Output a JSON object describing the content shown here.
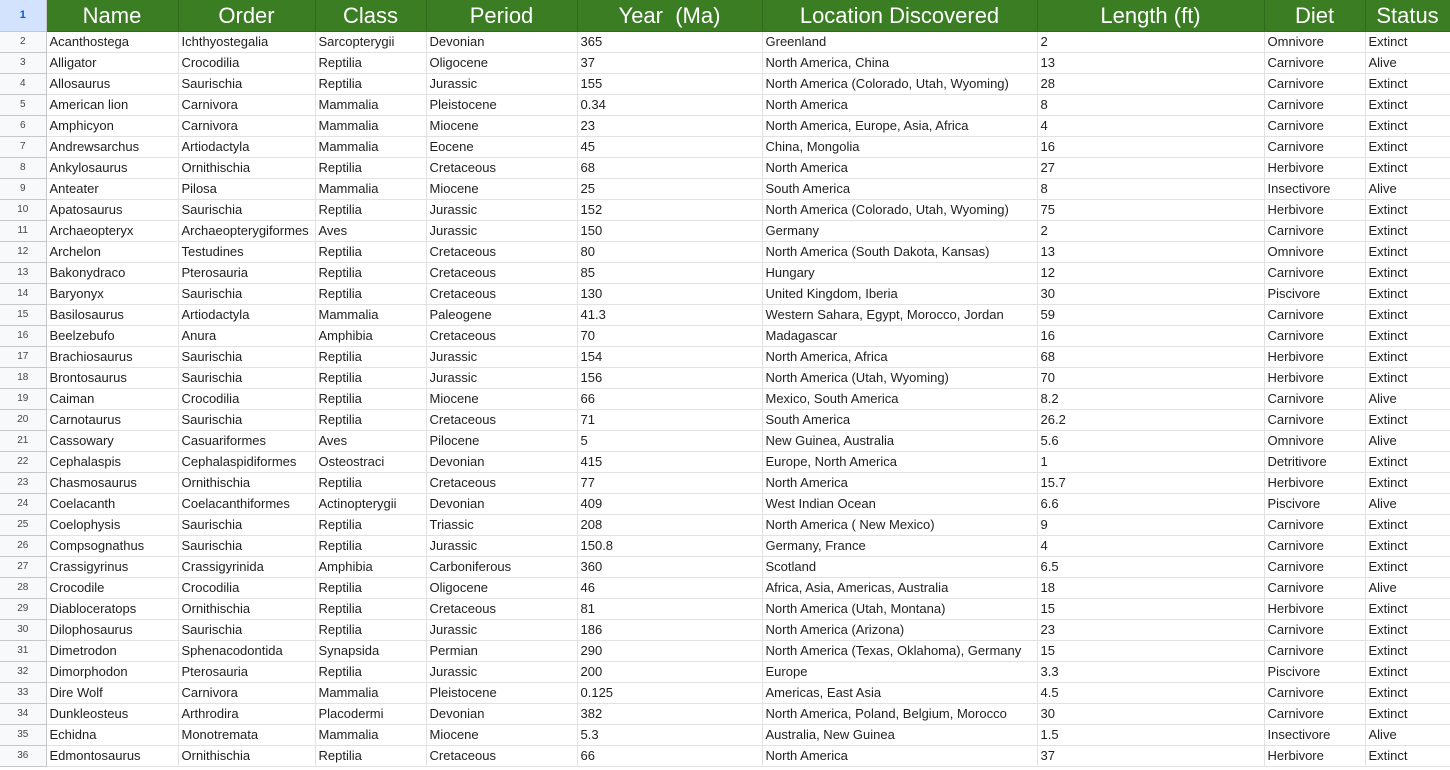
{
  "header_row_number": "1",
  "columns": [
    "Name",
    "Order",
    "Class",
    "Period",
    "Year  (Ma)",
    "Location Discovered",
    "Length (ft)",
    "Diet",
    "Status"
  ],
  "rows": [
    {
      "n": "2",
      "cells": [
        "Acanthostega",
        "Ichthyostegalia",
        "Sarcopterygii",
        "Devonian",
        "365",
        "Greenland",
        "2",
        "Omnivore",
        "Extinct"
      ]
    },
    {
      "n": "3",
      "cells": [
        "Alligator",
        "Crocodilia",
        "Reptilia",
        "Oligocene",
        "37",
        "North America, China",
        "13",
        "Carnivore",
        "Alive"
      ]
    },
    {
      "n": "4",
      "cells": [
        "Allosaurus",
        "Saurischia",
        "Reptilia",
        "Jurassic",
        "155",
        "North America (Colorado, Utah, Wyoming)",
        "28",
        "Carnivore",
        "Extinct"
      ]
    },
    {
      "n": "5",
      "cells": [
        "American lion",
        "Carnivora",
        "Mammalia",
        "Pleistocene",
        "0.34",
        "North America",
        "8",
        "Carnivore",
        "Extinct"
      ]
    },
    {
      "n": "6",
      "cells": [
        "Amphicyon",
        "Carnivora",
        "Mammalia",
        "Miocene",
        "23",
        "North America, Europe, Asia, Africa",
        "4",
        "Carnivore",
        "Extinct"
      ]
    },
    {
      "n": "7",
      "cells": [
        "Andrewsarchus",
        "Artiodactyla",
        "Mammalia",
        "Eocene",
        "45",
        "China, Mongolia",
        "16",
        "Carnivore",
        "Extinct"
      ]
    },
    {
      "n": "8",
      "cells": [
        "Ankylosaurus",
        "Ornithischia",
        "Reptilia",
        "Cretaceous",
        "68",
        "North America",
        "27",
        "Herbivore",
        "Extinct"
      ]
    },
    {
      "n": "9",
      "cells": [
        "Anteater",
        "Pilosa",
        "Mammalia",
        "Miocene",
        "25",
        "South America",
        "8",
        "Insectivore",
        "Alive"
      ]
    },
    {
      "n": "10",
      "cells": [
        "Apatosaurus",
        "Saurischia",
        "Reptilia",
        "Jurassic",
        "152",
        "North America (Colorado, Utah, Wyoming)",
        "75",
        "Herbivore",
        "Extinct"
      ]
    },
    {
      "n": "11",
      "cells": [
        "Archaeopteryx",
        "Archaeopterygiformes",
        "Aves",
        "Jurassic",
        "150",
        "Germany",
        "2",
        "Carnivore",
        "Extinct"
      ]
    },
    {
      "n": "12",
      "cells": [
        "Archelon",
        "Testudines",
        "Reptilia",
        "Cretaceous",
        "80",
        "North America (South Dakota, Kansas)",
        "13",
        "Omnivore",
        "Extinct"
      ]
    },
    {
      "n": "13",
      "cells": [
        "Bakonydraco",
        "Pterosauria",
        "Reptilia",
        "Cretaceous",
        "85",
        "Hungary",
        "12",
        "Carnivore",
        "Extinct"
      ]
    },
    {
      "n": "14",
      "cells": [
        "Baryonyx",
        "Saurischia",
        "Reptilia",
        "Cretaceous",
        "130",
        "United Kingdom, Iberia",
        "30",
        "Piscivore",
        "Extinct"
      ]
    },
    {
      "n": "15",
      "cells": [
        "Basilosaurus",
        "Artiodactyla",
        "Mammalia",
        "Paleogene",
        "41.3",
        "Western Sahara, Egypt, Morocco, Jordan",
        "59",
        "Carnivore",
        "Extinct"
      ]
    },
    {
      "n": "16",
      "cells": [
        "Beelzebufo",
        "Anura",
        "Amphibia",
        "Cretaceous",
        "70",
        "Madagascar",
        "16",
        "Carnivore",
        "Extinct"
      ]
    },
    {
      "n": "17",
      "cells": [
        "Brachiosaurus",
        "Saurischia",
        "Reptilia",
        "Jurassic",
        "154",
        "North America, Africa",
        "68",
        "Herbivore",
        "Extinct"
      ]
    },
    {
      "n": "18",
      "cells": [
        "Brontosaurus",
        "Saurischia",
        "Reptilia",
        "Jurassic",
        "156",
        "North America (Utah, Wyoming)",
        "70",
        "Herbivore",
        "Extinct"
      ]
    },
    {
      "n": "19",
      "cells": [
        "Caiman",
        "Crocodilia",
        "Reptilia",
        "Miocene",
        "66",
        "Mexico, South America",
        "8.2",
        "Carnivore",
        "Alive"
      ]
    },
    {
      "n": "20",
      "cells": [
        "Carnotaurus",
        "Saurischia",
        "Reptilia",
        "Cretaceous",
        "71",
        "South America",
        "26.2",
        "Carnivore",
        "Extinct"
      ]
    },
    {
      "n": "21",
      "cells": [
        "Cassowary",
        "Casuariformes",
        "Aves",
        "Pilocene",
        "5",
        "New Guinea, Australia",
        "5.6",
        "Omnivore",
        "Alive"
      ]
    },
    {
      "n": "22",
      "cells": [
        "Cephalaspis",
        "Cephalaspidiformes",
        "Osteostraci",
        "Devonian",
        "415",
        "Europe, North America",
        "1",
        "Detritivore",
        "Extinct"
      ]
    },
    {
      "n": "23",
      "cells": [
        "Chasmosaurus",
        "Ornithischia",
        "Reptilia",
        "Cretaceous",
        "77",
        "North America",
        "15.7",
        "Herbivore",
        "Extinct"
      ]
    },
    {
      "n": "24",
      "cells": [
        "Coelacanth",
        "Coelacanthiformes",
        "Actinopterygii",
        "Devonian",
        "409",
        "West Indian Ocean",
        "6.6",
        "Piscivore",
        "Alive"
      ]
    },
    {
      "n": "25",
      "cells": [
        "Coelophysis",
        "Saurischia",
        "Reptilia",
        "Triassic",
        "208",
        "North America ( New Mexico)",
        "9",
        "Carnivore",
        "Extinct"
      ]
    },
    {
      "n": "26",
      "cells": [
        "Compsognathus",
        "Saurischia",
        "Reptilia",
        "Jurassic",
        "150.8",
        "Germany, France",
        "4",
        "Carnivore",
        "Extinct"
      ]
    },
    {
      "n": "27",
      "cells": [
        "Crassigyrinus",
        "Crassigyrinida",
        "Amphibia",
        "Carboniferous",
        "360",
        "Scotland",
        "6.5",
        "Carnivore",
        "Extinct"
      ]
    },
    {
      "n": "28",
      "cells": [
        "Crocodile",
        "Crocodilia",
        "Reptilia",
        "Oligocene",
        "46",
        "Africa, Asia, Americas, Australia",
        "18",
        "Carnivore",
        "Alive"
      ]
    },
    {
      "n": "29",
      "cells": [
        "Diabloceratops",
        "Ornithischia",
        "Reptilia",
        "Cretaceous",
        "81",
        "North America (Utah, Montana)",
        "15",
        "Herbivore",
        "Extinct"
      ]
    },
    {
      "n": "30",
      "cells": [
        "Dilophosaurus",
        "Saurischia",
        "Reptilia",
        "Jurassic",
        "186",
        "North America (Arizona)",
        "23",
        "Carnivore",
        "Extinct"
      ]
    },
    {
      "n": "31",
      "cells": [
        "Dimetrodon",
        "Sphenacodontida",
        "Synapsida",
        "Permian",
        "290",
        "North America (Texas, Oklahoma), Germany",
        "15",
        "Carnivore",
        "Extinct"
      ]
    },
    {
      "n": "32",
      "cells": [
        "Dimorphodon",
        "Pterosauria",
        "Reptilia",
        "Jurassic",
        "200",
        "Europe",
        "3.3",
        "Piscivore",
        "Extinct"
      ]
    },
    {
      "n": "33",
      "cells": [
        "Dire Wolf",
        "Carnivora",
        "Mammalia",
        "Pleistocene",
        "0.125",
        "Americas, East Asia",
        "4.5",
        "Carnivore",
        "Extinct"
      ]
    },
    {
      "n": "34",
      "cells": [
        "Dunkleosteus",
        "Arthrodira",
        "Placodermi",
        "Devonian",
        "382",
        "North America, Poland, Belgium, Morocco",
        "30",
        "Carnivore",
        "Extinct"
      ]
    },
    {
      "n": "35",
      "cells": [
        "Echidna",
        "Monotremata",
        "Mammalia",
        "Miocene",
        "5.3",
        "Australia, New Guinea",
        "1.5",
        "Insectivore",
        "Alive"
      ]
    },
    {
      "n": "36",
      "cells": [
        "Edmontosaurus",
        "Ornithischia",
        "Reptilia",
        "Cretaceous",
        "66",
        "North America",
        "37",
        "Herbivore",
        "Extinct"
      ]
    }
  ]
}
